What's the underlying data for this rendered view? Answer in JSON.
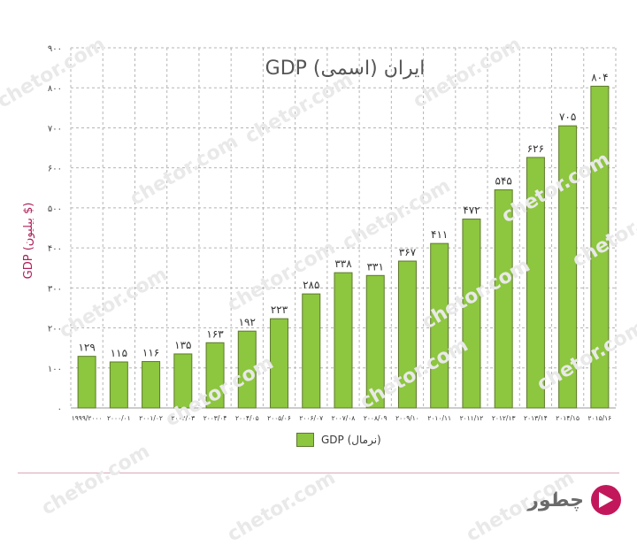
{
  "chart_data": {
    "type": "bar",
    "title": "GDP (اسمی) ایران",
    "ylabel": "GDP (بیلیون $)",
    "ylim": [
      0,
      900
    ],
    "yticks": [
      "۰",
      "۱۰۰",
      "۲۰۰",
      "۳۰۰",
      "۴۰۰",
      "۵۰۰",
      "۶۰۰",
      "۷۰۰",
      "۸۰۰",
      "۹۰۰"
    ],
    "categories": [
      "۱۹۹۹/۲۰۰۰",
      "۲۰۰۰/۰۱",
      "۲۰۰۱/۰۲",
      "۲۰۰۲/۰۳",
      "۲۰۰۳/۰۴",
      "۲۰۰۴/۰۵",
      "۲۰۰۵/۰۶",
      "۲۰۰۶/۰۷",
      "۲۰۰۷/۰۸",
      "۲۰۰۸/۰۹",
      "۲۰۰۹/۱۰",
      "۲۰۱۰/۱۱",
      "۲۰۱۱/۱۲",
      "۲۰۱۲/۱۳",
      "۲۰۱۳/۱۴",
      "۲۰۱۴/۱۵",
      "۲۰۱۵/۱۶"
    ],
    "values": [
      129,
      115,
      116,
      135,
      163,
      192,
      223,
      285,
      338,
      331,
      367,
      411,
      472,
      545,
      626,
      705,
      804
    ],
    "value_labels": [
      "۱۲۹",
      "۱۱۵",
      "۱۱۶",
      "۱۳۵",
      "۱۶۳",
      "۱۹۲",
      "۲۲۳",
      "۲۸۵",
      "۳۳۸",
      "۳۳۱",
      "۳۶۷",
      "۴۱۱",
      "۴۷۲",
      "۵۴۵",
      "۶۲۶",
      "۷۰۵",
      "۸۰۴"
    ],
    "legend": "GDP (نرمال)",
    "legend_position": "bottom",
    "grid": true,
    "bar_color": "#8dc63f",
    "bar_edge_color": "#5d7a2a"
  },
  "watermark": "chetor.com",
  "brand": {
    "name": "چطور",
    "color": "#c2185b"
  }
}
